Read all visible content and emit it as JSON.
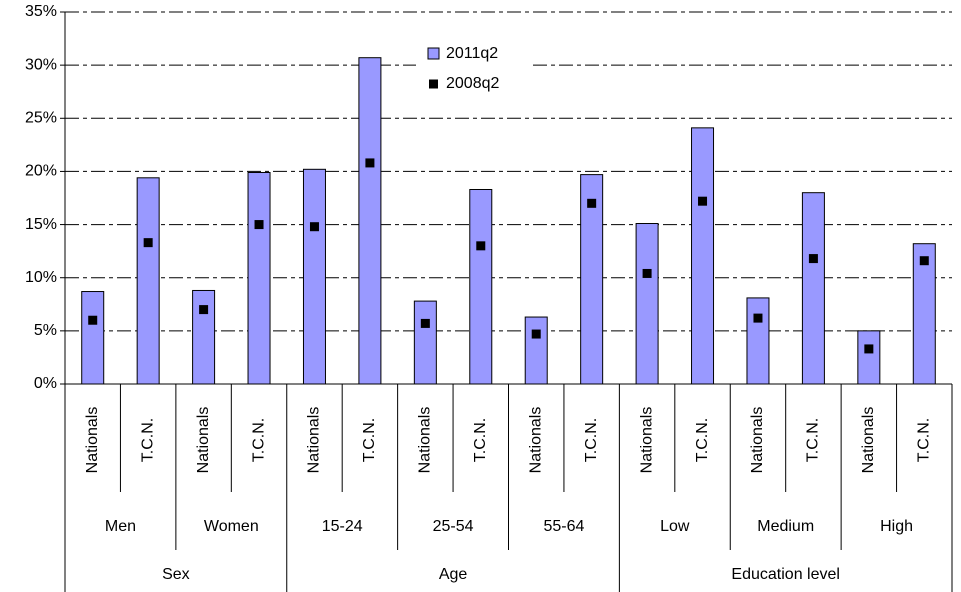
{
  "chart_data": {
    "type": "bar",
    "groups": [
      {
        "name": "Sex",
        "subgroups": [
          {
            "name": "Men",
            "categories": [
              "Nationals",
              "T.C.N."
            ]
          },
          {
            "name": "Women",
            "categories": [
              "Nationals",
              "T.C.N."
            ]
          }
        ]
      },
      {
        "name": "Age",
        "subgroups": [
          {
            "name": "15-24",
            "categories": [
              "Nationals",
              "T.C.N."
            ]
          },
          {
            "name": "25-54",
            "categories": [
              "Nationals",
              "T.C.N."
            ]
          },
          {
            "name": "55-64",
            "categories": [
              "Nationals",
              "T.C.N."
            ]
          }
        ]
      },
      {
        "name": "Education level",
        "subgroups": [
          {
            "name": "Low",
            "categories": [
              "Nationals",
              "T.C.N."
            ]
          },
          {
            "name": "Medium",
            "categories": [
              "Nationals",
              "T.C.N."
            ]
          },
          {
            "name": "High",
            "categories": [
              "Nationals",
              "T.C.N."
            ]
          }
        ]
      }
    ],
    "series": [
      {
        "name": "2011q2",
        "color": "#9999ff",
        "marker": "bar",
        "values": [
          8.7,
          19.4,
          8.8,
          19.9,
          20.2,
          30.7,
          7.8,
          18.3,
          6.3,
          19.7,
          15.1,
          24.1,
          8.1,
          18.0,
          5.0,
          13.2
        ]
      },
      {
        "name": "2008q2",
        "color": "#000000",
        "marker": "square",
        "values": [
          6.0,
          13.3,
          7.0,
          15.0,
          14.8,
          20.8,
          5.7,
          13.0,
          4.7,
          17.0,
          10.4,
          17.2,
          6.2,
          11.8,
          3.3,
          11.6
        ]
      }
    ],
    "ylim": [
      0,
      35
    ],
    "yticks": [
      {
        "value": 0,
        "label": "0%"
      },
      {
        "value": 5,
        "label": "5%"
      },
      {
        "value": 10,
        "label": "10%"
      },
      {
        "value": 15,
        "label": "15%"
      },
      {
        "value": 20,
        "label": "20%"
      },
      {
        "value": 25,
        "label": "25%"
      },
      {
        "value": 30,
        "label": "30%"
      },
      {
        "value": 35,
        "label": "35%"
      }
    ],
    "grid": true
  }
}
